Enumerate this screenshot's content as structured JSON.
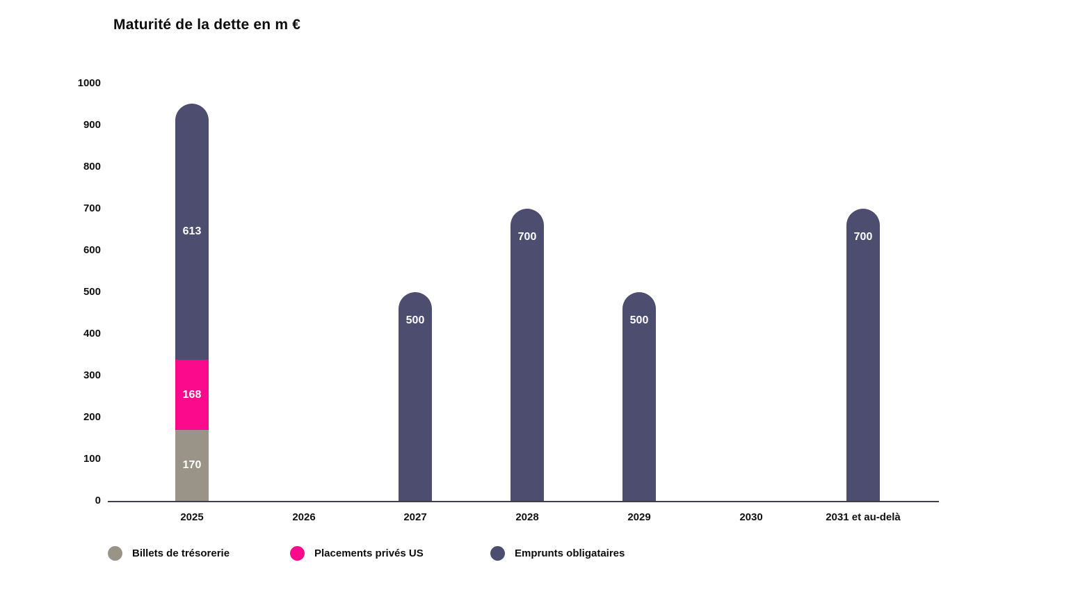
{
  "title": "Maturité de la dette en m €",
  "colors": {
    "billets_de_tresorerie": "#9a9488",
    "placements_prives_us": "#fb0a8c",
    "emprunts_obligataires": "#4d4d70",
    "axis_line": "#3f3f46",
    "bar_value_text": "#ffffff",
    "tick_text": "#111111"
  },
  "chart_data": {
    "type": "bar",
    "stacked": true,
    "title": "Maturité de la dette en m €",
    "categories": [
      "2025",
      "2026",
      "2027",
      "2028",
      "2029",
      "2030",
      "2031 et au-delà"
    ],
    "series": [
      {
        "name": "Billets de trésorerie",
        "color": "#9a9488",
        "values": [
          170,
          0,
          0,
          0,
          0,
          0,
          0
        ]
      },
      {
        "name": "Placements privés US",
        "color": "#fb0a8c",
        "values": [
          168,
          0,
          0,
          0,
          0,
          0,
          0
        ]
      },
      {
        "name": "Emprunts obligataires",
        "color": "#4d4d70",
        "values": [
          613,
          0,
          500,
          700,
          500,
          0,
          700
        ]
      }
    ],
    "bar_value_labels": {
      "2025": [
        "170",
        "168",
        "613"
      ],
      "2027": [
        "500"
      ],
      "2028": [
        "700"
      ],
      "2029": [
        "500"
      ],
      "2031 et au-delà": [
        "700"
      ]
    },
    "xlabel": "",
    "ylabel": "",
    "y_axis": {
      "min": 0,
      "max": 1000,
      "step": 100
    },
    "grid": false,
    "legend_position": "bottom",
    "rounded_bar_tops": true
  },
  "legend": {
    "items": [
      {
        "label": "Billets de trésorerie",
        "color": "#9a9488"
      },
      {
        "label": "Placements privés US",
        "color": "#fb0a8c"
      },
      {
        "label": "Emprunts obligataires",
        "color": "#4d4d70"
      }
    ]
  }
}
